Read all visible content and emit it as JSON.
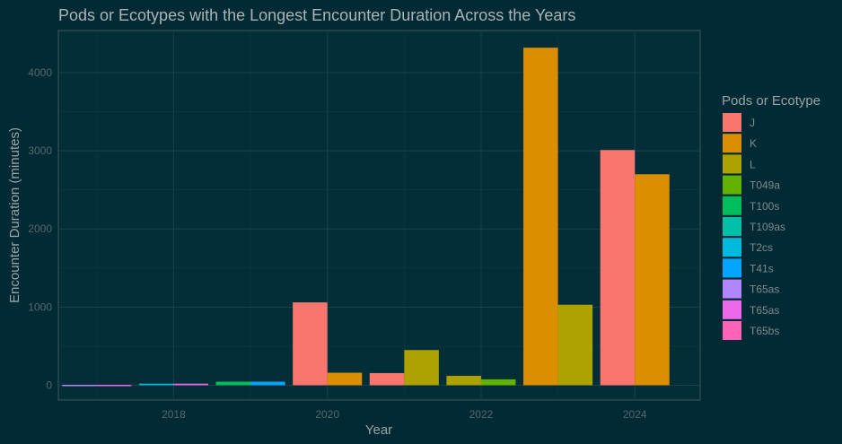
{
  "chart_data": {
    "type": "bar",
    "title": "Pods or Ecotypes with the Longest Encounter Duration Across the Years",
    "xlabel": "Year",
    "ylabel": "Encounter Duration (minutes)",
    "xlim": [
      2016.5,
      2024.85
    ],
    "ylim": [
      -190,
      4540
    ],
    "xticks": [
      2018,
      2020,
      2022,
      2024
    ],
    "yticks": [
      0,
      1000,
      2000,
      3000,
      4000
    ],
    "grid": true,
    "legend": {
      "title": "Pods or Ecotype",
      "position": "right",
      "entries": [
        {
          "name": "J",
          "color": "#F8766D"
        },
        {
          "name": "K",
          "color": "#DB8E00"
        },
        {
          "name": "L",
          "color": "#AEA200"
        },
        {
          "name": "T049a",
          "color": "#64B200"
        },
        {
          "name": "T100s",
          "color": "#00BD5C"
        },
        {
          "name": "T109as",
          "color": "#00C1A7"
        },
        {
          "name": "T2cs",
          "color": "#00BADE"
        },
        {
          "name": "T41s",
          "color": "#00A6FF"
        },
        {
          "name": "T65as",
          "color": "#B385FF"
        },
        {
          "name": "T65as",
          "color": "#EF67EB"
        },
        {
          "name": "T65bs",
          "color": "#FF63B6"
        }
      ]
    },
    "bars": [
      {
        "year": 2017,
        "pod": "T65as",
        "color": "#B385FF",
        "value": 5
      },
      {
        "year": 2017,
        "pod": "T65as",
        "color": "#EF67EB",
        "value": 5
      },
      {
        "year": 2018,
        "pod": "T2cs",
        "color": "#00BADE",
        "value": 20
      },
      {
        "year": 2018,
        "pod": "T65as",
        "color": "#EF67EB",
        "value": 20
      },
      {
        "year": 2019,
        "pod": "T100s",
        "color": "#00BD5C",
        "value": 45
      },
      {
        "year": 2019,
        "pod": "T41s",
        "color": "#00A6FF",
        "value": 45
      },
      {
        "year": 2020,
        "pod": "J",
        "color": "#F8766D",
        "value": 1060
      },
      {
        "year": 2020,
        "pod": "K",
        "color": "#DB8E00",
        "value": 160
      },
      {
        "year": 2021,
        "pod": "J",
        "color": "#F8766D",
        "value": 155
      },
      {
        "year": 2021,
        "pod": "L",
        "color": "#AEA200",
        "value": 450
      },
      {
        "year": 2022,
        "pod": "L",
        "color": "#AEA200",
        "value": 120
      },
      {
        "year": 2022,
        "pod": "T049a",
        "color": "#64B200",
        "value": 75
      },
      {
        "year": 2023,
        "pod": "K",
        "color": "#DB8E00",
        "value": 4320
      },
      {
        "year": 2023,
        "pod": "L",
        "color": "#AEA200",
        "value": 1030
      },
      {
        "year": 2024,
        "pod": "J",
        "color": "#F8766D",
        "value": 3010
      },
      {
        "year": 2024,
        "pod": "K",
        "color": "#DB8E00",
        "value": 2700
      }
    ]
  }
}
